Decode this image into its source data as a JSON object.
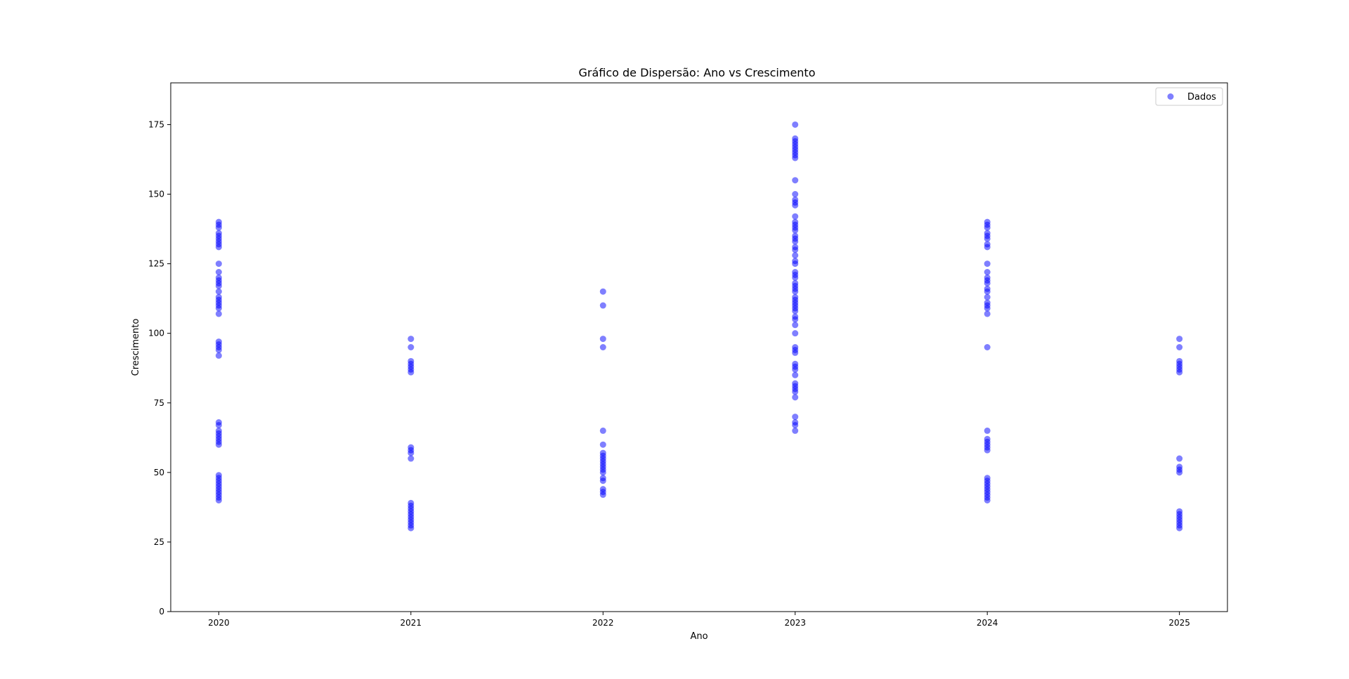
{
  "chart_data": {
    "type": "scatter",
    "title": "Gráfico de Dispersão: Ano vs Crescimento",
    "xlabel": "Ano",
    "ylabel": "Crescimento",
    "xlim": [
      2019.75,
      2025.25
    ],
    "ylim": [
      0,
      190
    ],
    "xticks": [
      2020,
      2021,
      2022,
      2023,
      2024,
      2025
    ],
    "yticks": [
      0,
      25,
      50,
      75,
      100,
      125,
      150,
      175
    ],
    "grid": false,
    "legend": "top-right",
    "marker_color": "#0000ff",
    "marker_alpha": 0.5,
    "series": [
      {
        "name": "Dados",
        "points": [
          {
            "x": 2020,
            "values": [
              140,
              139,
              138,
              136,
              135,
              134,
              133,
              132,
              131,
              125,
              122,
              120,
              119,
              118,
              117,
              115,
              113,
              112,
              111,
              110,
              109,
              107,
              97,
              96,
              95,
              94,
              92,
              68,
              67,
              65,
              64,
              63,
              62,
              61,
              60,
              49,
              48,
              47,
              46,
              45,
              44,
              43,
              42,
              41,
              40
            ]
          },
          {
            "x": 2021,
            "values": [
              98,
              95,
              90,
              89,
              88,
              87,
              86,
              59,
              58,
              57,
              55,
              39,
              38,
              37,
              36,
              35,
              34,
              33,
              32,
              31,
              30
            ]
          },
          {
            "x": 2022,
            "values": [
              115,
              110,
              98,
              95,
              65,
              60,
              57,
              56,
              55,
              54,
              53,
              52,
              51,
              50,
              48,
              47,
              44,
              43,
              42
            ]
          },
          {
            "x": 2023,
            "values": [
              175,
              170,
              169,
              168,
              167,
              166,
              165,
              164,
              163,
              155,
              150,
              148,
              147,
              146,
              142,
              140,
              139,
              138,
              137,
              135,
              134,
              133,
              131,
              130,
              128,
              126,
              125,
              122,
              121,
              120,
              118,
              117,
              116,
              115,
              113,
              112,
              111,
              110,
              109,
              108,
              106,
              105,
              103,
              100,
              95,
              94,
              93,
              89,
              88,
              87,
              85,
              82,
              81,
              80,
              79,
              77,
              70,
              68,
              67,
              65
            ]
          },
          {
            "x": 2024,
            "values": [
              140,
              139,
              138,
              136,
              135,
              134,
              132,
              131,
              125,
              122,
              120,
              119,
              118,
              116,
              115,
              113,
              111,
              110,
              109,
              107,
              95,
              65,
              62,
              61,
              60,
              59,
              58,
              48,
              47,
              46,
              45,
              44,
              43,
              42,
              41,
              40
            ]
          },
          {
            "x": 2025,
            "values": [
              98,
              95,
              90,
              89,
              88,
              87,
              86,
              55,
              52,
              51,
              50,
              36,
              35,
              34,
              33,
              32,
              31,
              30
            ]
          }
        ]
      }
    ]
  }
}
